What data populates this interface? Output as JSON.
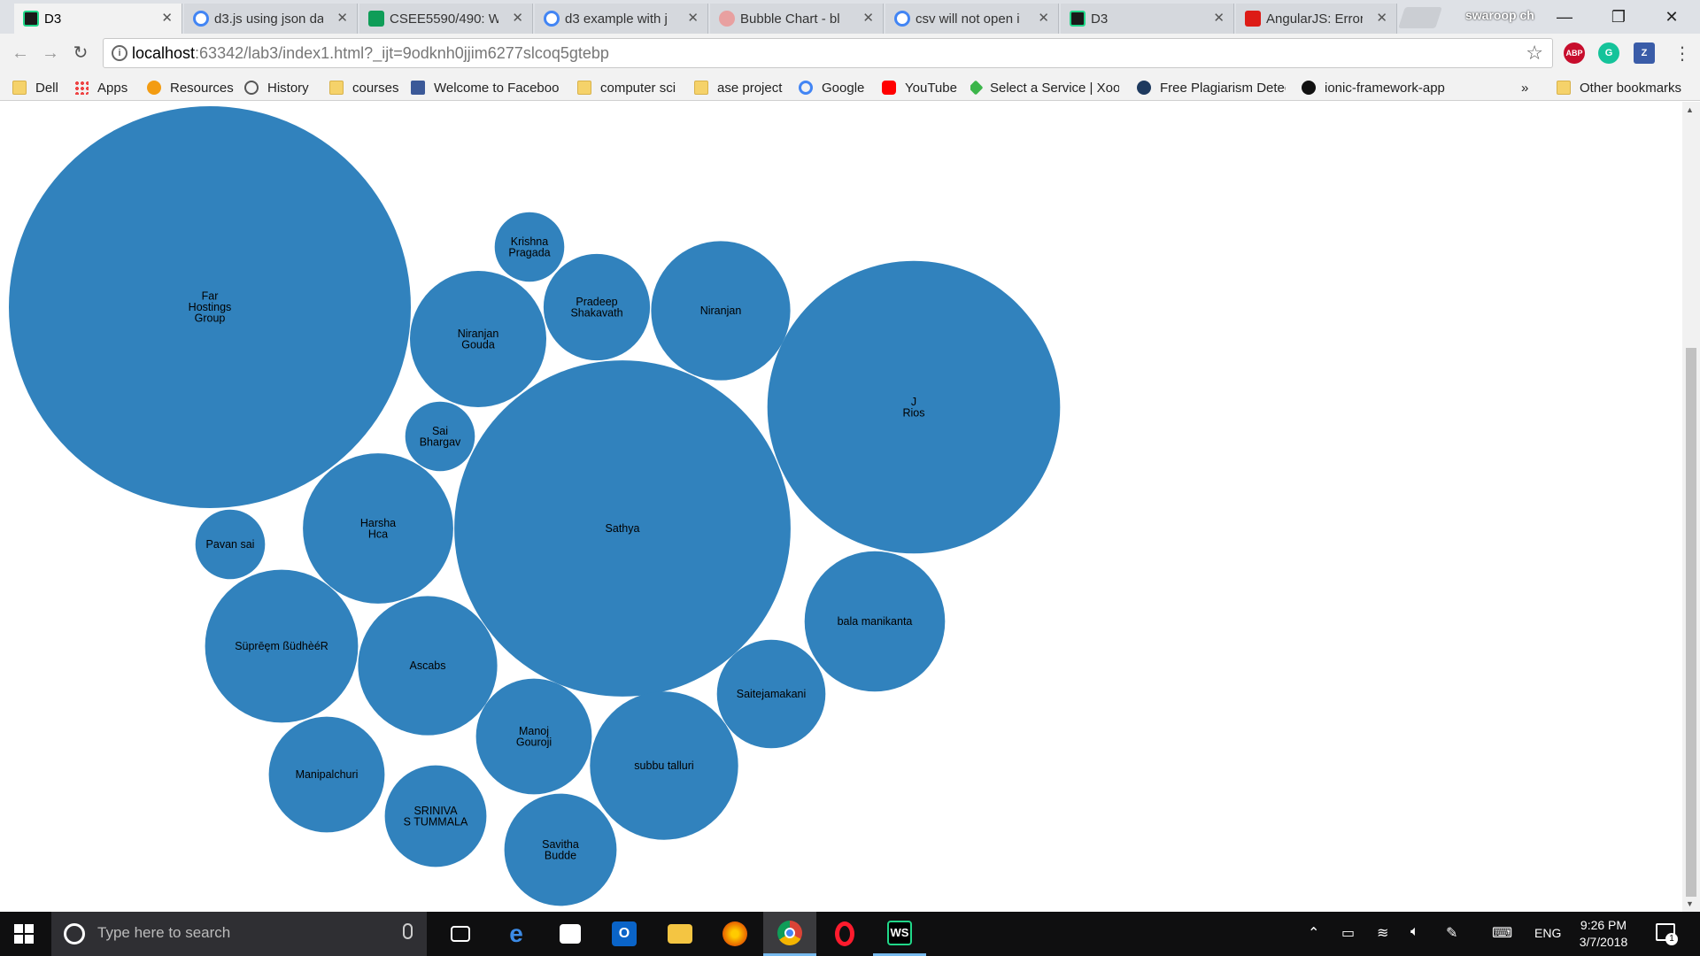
{
  "browser": {
    "tabs": [
      {
        "label": "D3",
        "icon": "webstorm-icon",
        "active": true
      },
      {
        "label": "d3.js using json da",
        "icon": "google-icon"
      },
      {
        "label": "CSEE5590/490: W",
        "icon": "sheets-icon"
      },
      {
        "label": "d3 example with j",
        "icon": "google-icon"
      },
      {
        "label": "Bubble Chart - bl",
        "icon": "page-icon"
      },
      {
        "label": "csv will not open i",
        "icon": "google-icon"
      },
      {
        "label": "D3",
        "icon": "webstorm-icon"
      },
      {
        "label": "AngularJS: Error R",
        "icon": "angular-icon"
      }
    ],
    "profile_name": "swaroop ch",
    "url_host": "localhost",
    "url_path": ":63342/lab3/index1.html?_ijt=9odknh0jjim6277slcoq5gtebp",
    "extensions": [
      "ABP",
      "G",
      "Z"
    ],
    "bookmarks": [
      {
        "label": "Dell",
        "type": "folder"
      },
      {
        "label": "Apps",
        "type": "apps"
      },
      {
        "label": "Resources",
        "type": "site"
      },
      {
        "label": "History",
        "type": "history"
      },
      {
        "label": "courses",
        "type": "folder"
      },
      {
        "label": "Welcome to Faceboo",
        "type": "facebook"
      },
      {
        "label": "computer sci",
        "type": "folder"
      },
      {
        "label": "ase project",
        "type": "folder"
      },
      {
        "label": "Google",
        "type": "google"
      },
      {
        "label": "YouTube",
        "type": "youtube"
      },
      {
        "label": "Select a Service | Xoo",
        "type": "xoom"
      },
      {
        "label": "Free Plagiarism Detec",
        "type": "site"
      },
      {
        "label": "ionic-framework-app",
        "type": "github"
      }
    ],
    "bookmarks_overflow": "»",
    "other_bookmarks": "Other bookmarks"
  },
  "chart_data": {
    "type": "bubble",
    "color": "#3182bd",
    "label_color": "#000000",
    "bubbles": [
      {
        "name": "Far Hostings Group",
        "lines": [
          "Far",
          "Hostings",
          "Group"
        ],
        "value": 100
      },
      {
        "name": "J Rios",
        "lines": [
          "J",
          "Rios"
        ],
        "value": 53
      },
      {
        "name": "Sathya",
        "lines": [
          "Sathya"
        ],
        "value": 70
      },
      {
        "name": "Krishna Pragada",
        "lines": [
          "Krishna",
          "Pragada"
        ],
        "value": 3
      },
      {
        "name": "Pradeep Shakavath",
        "lines": [
          "Pradeep",
          "Shakavath"
        ],
        "value": 7
      },
      {
        "name": "Niranjan Gouda",
        "lines": [
          "Niranjan",
          "Gouda"
        ],
        "value": 11.5
      },
      {
        "name": "Niranjan",
        "lines": [
          "Niranjan"
        ],
        "value": 12
      },
      {
        "name": "Sai Bhargav",
        "lines": [
          "Sai",
          "Bhargav"
        ],
        "value": 3
      },
      {
        "name": "Harsha Hca",
        "lines": [
          "Harsha",
          "Hca"
        ],
        "value": 14
      },
      {
        "name": "Pavan sai",
        "lines": [
          "Pavan sai"
        ],
        "value": 3
      },
      {
        "name": "Süprēęm ßüdhèéR",
        "lines": [
          "Süprēęm ßüdhèéR"
        ],
        "value": 14.5
      },
      {
        "name": "Ascabs",
        "lines": [
          "Ascabs"
        ],
        "value": 12
      },
      {
        "name": "Manoj Gouroji",
        "lines": [
          "Manoj",
          "Gouroji"
        ],
        "value": 8.3
      },
      {
        "name": "subbu talluri",
        "lines": [
          "subbu talluri"
        ],
        "value": 13.6
      },
      {
        "name": "Saitejamakani",
        "lines": [
          "Saitejamakani"
        ],
        "value": 7.3
      },
      {
        "name": "bala manikanta",
        "lines": [
          "bala manikanta"
        ],
        "value": 12.2
      },
      {
        "name": "Manipalchuri",
        "lines": [
          "Manipalchuri"
        ],
        "value": 8.3
      },
      {
        "name": "SRINIVAS TUMMALA",
        "lines": [
          "SRINIVA",
          "S TUMMALA"
        ],
        "value": 6.4
      },
      {
        "name": "Savitha Budde",
        "lines": [
          "Savitha",
          "Budde"
        ],
        "value": 7.8
      }
    ]
  },
  "taskbar": {
    "search_placeholder": "Type here to search",
    "apps": [
      "task-view",
      "edge",
      "store",
      "outlook",
      "file-explorer",
      "firefox",
      "chrome",
      "opera",
      "webstorm"
    ],
    "language": "ENG",
    "time": "9:26 PM",
    "date": "3/7/2018",
    "notification_count": "1"
  }
}
